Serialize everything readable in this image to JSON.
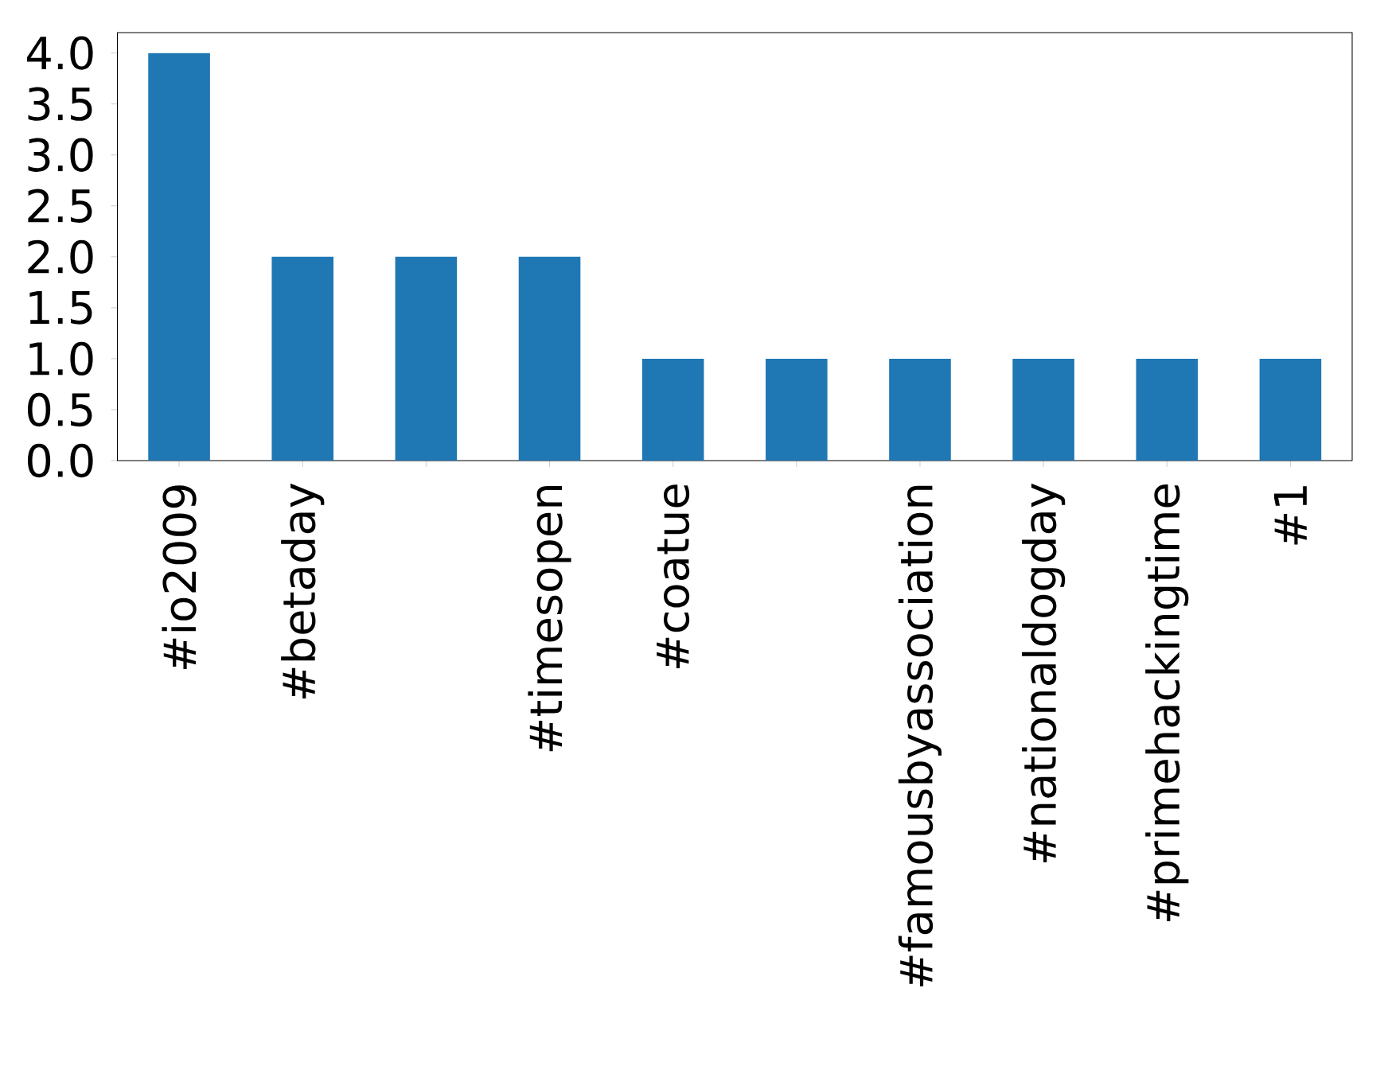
{
  "chart_data": {
    "type": "bar",
    "categories": [
      "#io2009",
      "#betaday",
      null,
      "#timesopen",
      "#coatue",
      null,
      "#famousbyassociation",
      "#nationaldogday",
      "#primehackingtime",
      "#1"
    ],
    "values": [
      4,
      2,
      2,
      2,
      1,
      1,
      1,
      1,
      1,
      1
    ],
    "color": "#1f77b4",
    "ylim": [
      0,
      4.2
    ],
    "yticks": [
      {
        "value": 0,
        "label": "0.0"
      },
      {
        "value": 0.5,
        "label": "0.5"
      },
      {
        "value": 1,
        "label": "1.0"
      },
      {
        "value": 1.5,
        "label": "1.5"
      },
      {
        "value": 2,
        "label": "2.0"
      },
      {
        "value": 2.5,
        "label": "2.5"
      },
      {
        "value": 3,
        "label": "3.0"
      },
      {
        "value": 3.5,
        "label": "3.5"
      },
      {
        "value": 4,
        "label": "4.0"
      }
    ]
  }
}
